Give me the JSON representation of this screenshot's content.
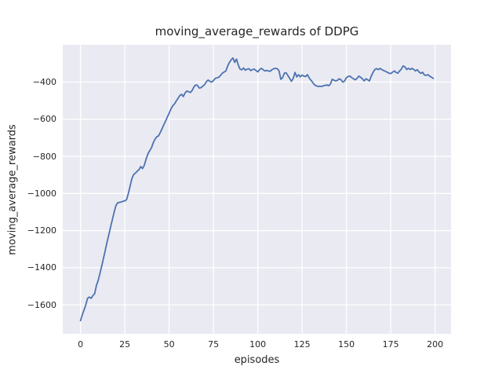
{
  "chart_data": {
    "type": "line",
    "title": "moving_average_rewards of DDPG",
    "xlabel": "episodes",
    "ylabel": "moving_average_rewards",
    "xlim": [
      -10,
      209
    ],
    "ylim": [
      -1756,
      -199
    ],
    "grid": true,
    "legend": "none",
    "axes_background": "#eaeaf2",
    "grid_color": "#ffffff",
    "line_color": "#4c72b0",
    "text_color": "#262626",
    "x_ticks": {
      "values": [
        0,
        25,
        50,
        75,
        100,
        125,
        150,
        175,
        200
      ],
      "labels": [
        "0",
        "25",
        "50",
        "75",
        "100",
        "125",
        "150",
        "175",
        "200"
      ]
    },
    "y_ticks": {
      "values": [
        -400,
        -600,
        -800,
        -1000,
        -1200,
        -1400,
        -1600
      ],
      "labels": [
        "−400",
        "−600",
        "−800",
        "−1000",
        "−1200",
        "−1400",
        "−1600"
      ]
    },
    "series": [
      {
        "name": "moving_average_rewards",
        "x_start": 0,
        "x_step": 1,
        "y": [
          -1685,
          -1655,
          -1628,
          -1600,
          -1565,
          -1558,
          -1565,
          -1550,
          -1540,
          -1495,
          -1468,
          -1430,
          -1390,
          -1348,
          -1305,
          -1262,
          -1222,
          -1180,
          -1140,
          -1100,
          -1065,
          -1050,
          -1048,
          -1046,
          -1042,
          -1040,
          -1033,
          -1000,
          -960,
          -920,
          -898,
          -890,
          -880,
          -872,
          -855,
          -866,
          -848,
          -815,
          -788,
          -770,
          -755,
          -728,
          -708,
          -695,
          -690,
          -672,
          -652,
          -630,
          -610,
          -588,
          -568,
          -545,
          -528,
          -518,
          -502,
          -488,
          -473,
          -466,
          -478,
          -458,
          -448,
          -452,
          -456,
          -445,
          -426,
          -415,
          -418,
          -432,
          -430,
          -422,
          -414,
          -398,
          -389,
          -396,
          -400,
          -392,
          -380,
          -377,
          -374,
          -364,
          -352,
          -346,
          -340,
          -314,
          -294,
          -280,
          -270,
          -294,
          -276,
          -308,
          -330,
          -334,
          -324,
          -336,
          -330,
          -328,
          -338,
          -333,
          -330,
          -338,
          -345,
          -333,
          -326,
          -333,
          -340,
          -337,
          -340,
          -342,
          -333,
          -328,
          -326,
          -328,
          -340,
          -385,
          -376,
          -352,
          -350,
          -365,
          -380,
          -396,
          -380,
          -348,
          -372,
          -360,
          -372,
          -362,
          -368,
          -370,
          -360,
          -378,
          -390,
          -402,
          -415,
          -420,
          -424,
          -422,
          -424,
          -420,
          -418,
          -415,
          -420,
          -410,
          -385,
          -390,
          -394,
          -390,
          -382,
          -388,
          -400,
          -394,
          -376,
          -370,
          -368,
          -376,
          -382,
          -388,
          -380,
          -368,
          -374,
          -382,
          -394,
          -382,
          -388,
          -394,
          -368,
          -348,
          -333,
          -327,
          -333,
          -326,
          -333,
          -338,
          -342,
          -347,
          -352,
          -354,
          -347,
          -340,
          -348,
          -352,
          -340,
          -330,
          -313,
          -318,
          -332,
          -326,
          -332,
          -326,
          -332,
          -340,
          -333,
          -346,
          -353,
          -347,
          -362,
          -364,
          -360,
          -368,
          -374,
          -380
        ]
      }
    ]
  }
}
